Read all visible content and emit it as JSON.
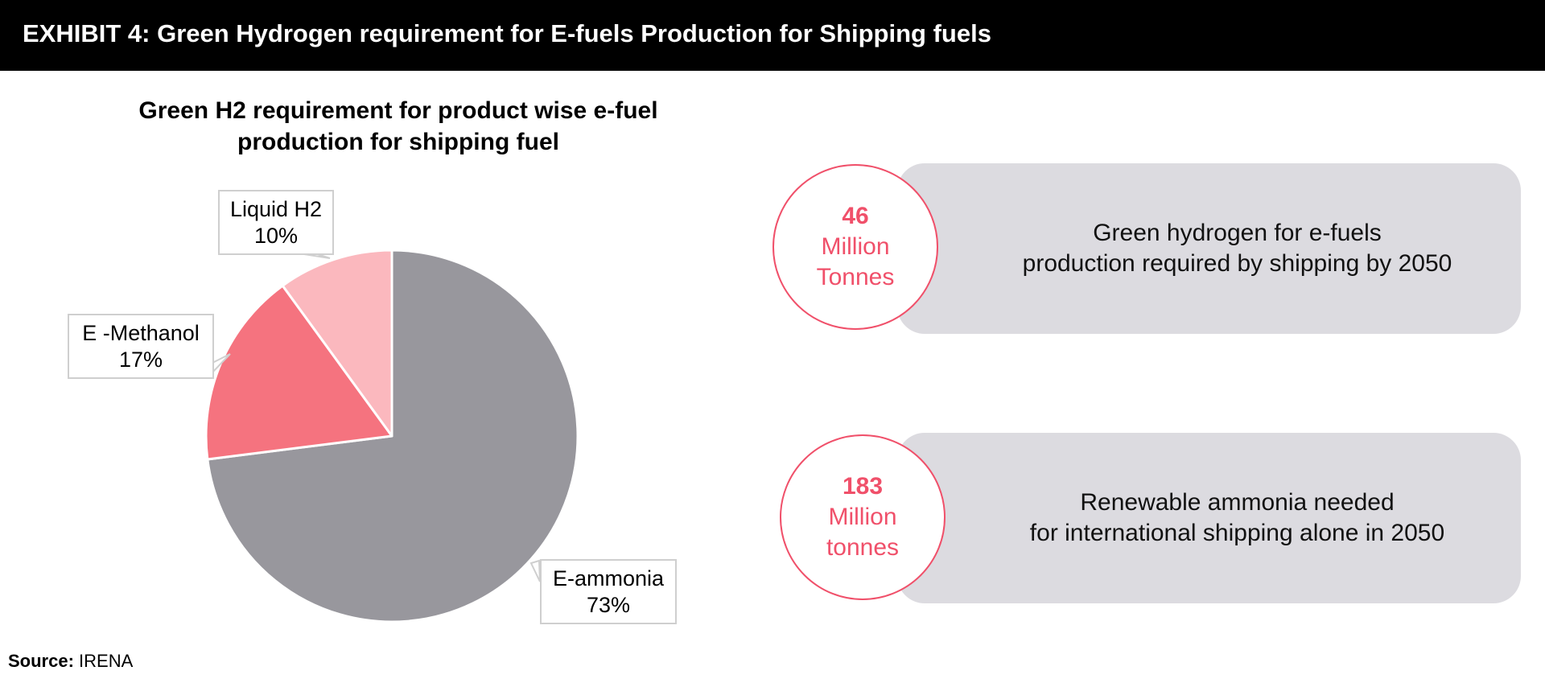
{
  "header": {
    "title": "EXHIBIT 4: Green Hydrogen requirement for E-fuels Production for Shipping fuels"
  },
  "chart_data": {
    "type": "pie",
    "title": "Green H2 requirement for product wise e-fuel production for shipping fuel",
    "slices": [
      {
        "label": "E-ammonia",
        "value": 73,
        "value_label": "73%",
        "color": "#98979d"
      },
      {
        "label": "E -Methanol",
        "value": 17,
        "value_label": "17%",
        "color": "#f5737f"
      },
      {
        "label": "Liquid H2",
        "value": 10,
        "value_label": "10%",
        "color": "#fbb8be"
      }
    ]
  },
  "kpis": [
    {
      "value": "46",
      "line1": "Million",
      "line2": "Tonnes",
      "desc_line1": "Green hydrogen for e-fuels",
      "desc_line2": "production required by shipping by 2050"
    },
    {
      "value": "183",
      "line1": "Million",
      "line2": "tonnes",
      "desc_line1": "Renewable ammonia needed",
      "desc_line2": "for international shipping alone in 2050"
    }
  ],
  "source": {
    "label": "Source:",
    "text": "IRENA"
  },
  "colors": {
    "accent": "#f0506a",
    "panel": "#dcdbe0",
    "header_bg": "#000000"
  }
}
